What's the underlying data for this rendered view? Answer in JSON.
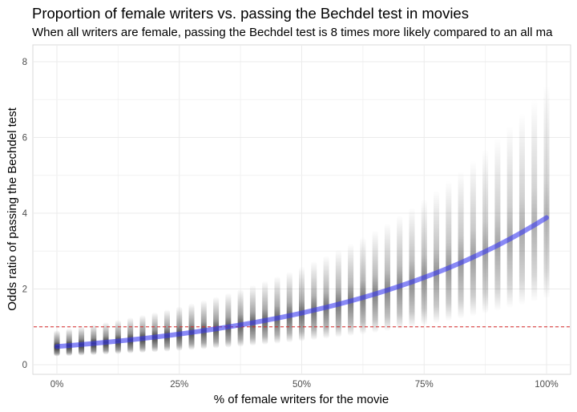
{
  "chart_data": {
    "type": "scatter",
    "title": "Proportion of female writers vs. passing the Bechdel test in movies",
    "subtitle": "When all writers are female, passing the Bechdel test is 8 times more likely compared to an all ma",
    "xlabel": "% of female writers for the movie",
    "ylabel": "Odds ratio of passing the Bechdel test",
    "xlim": [
      -0.05,
      1.05
    ],
    "ylim": [
      -0.25,
      8.4
    ],
    "x_ticks": [
      0,
      0.25,
      0.5,
      0.75,
      1.0
    ],
    "x_tick_labels": [
      "0%",
      "25%",
      "50%",
      "75%",
      "100%"
    ],
    "y_ticks": [
      0,
      2,
      4,
      6,
      8
    ],
    "y_tick_labels": [
      "0",
      "2",
      "4",
      "6",
      "8"
    ],
    "grid": true,
    "reference_line": {
      "y": 1,
      "color": "#d62728",
      "style": "dashed"
    },
    "fit_line_color": "#3b3bf0",
    "x": [
      0,
      0.025,
      0.05,
      0.075,
      0.1,
      0.125,
      0.15,
      0.175,
      0.2,
      0.225,
      0.25,
      0.275,
      0.3,
      0.325,
      0.35,
      0.375,
      0.4,
      0.425,
      0.45,
      0.475,
      0.5,
      0.525,
      0.55,
      0.575,
      0.6,
      0.625,
      0.65,
      0.675,
      0.7,
      0.725,
      0.75,
      0.775,
      0.8,
      0.825,
      0.85,
      0.875,
      0.9,
      0.925,
      0.95,
      0.975,
      1.0
    ],
    "median_odds_ratio": [
      0.48,
      0.506,
      0.533,
      0.561,
      0.592,
      0.623,
      0.657,
      0.692,
      0.729,
      0.768,
      0.81,
      0.853,
      0.899,
      0.947,
      0.998,
      1.051,
      1.108,
      1.167,
      1.23,
      1.296,
      1.365,
      1.439,
      1.516,
      1.597,
      1.683,
      1.773,
      1.868,
      1.968,
      2.074,
      2.185,
      2.302,
      2.426,
      2.556,
      2.693,
      2.838,
      2.99,
      3.15,
      3.319,
      3.497,
      3.685,
      3.883
    ],
    "simulation_interval_factor": [
      0.45,
      1.9
    ]
  }
}
